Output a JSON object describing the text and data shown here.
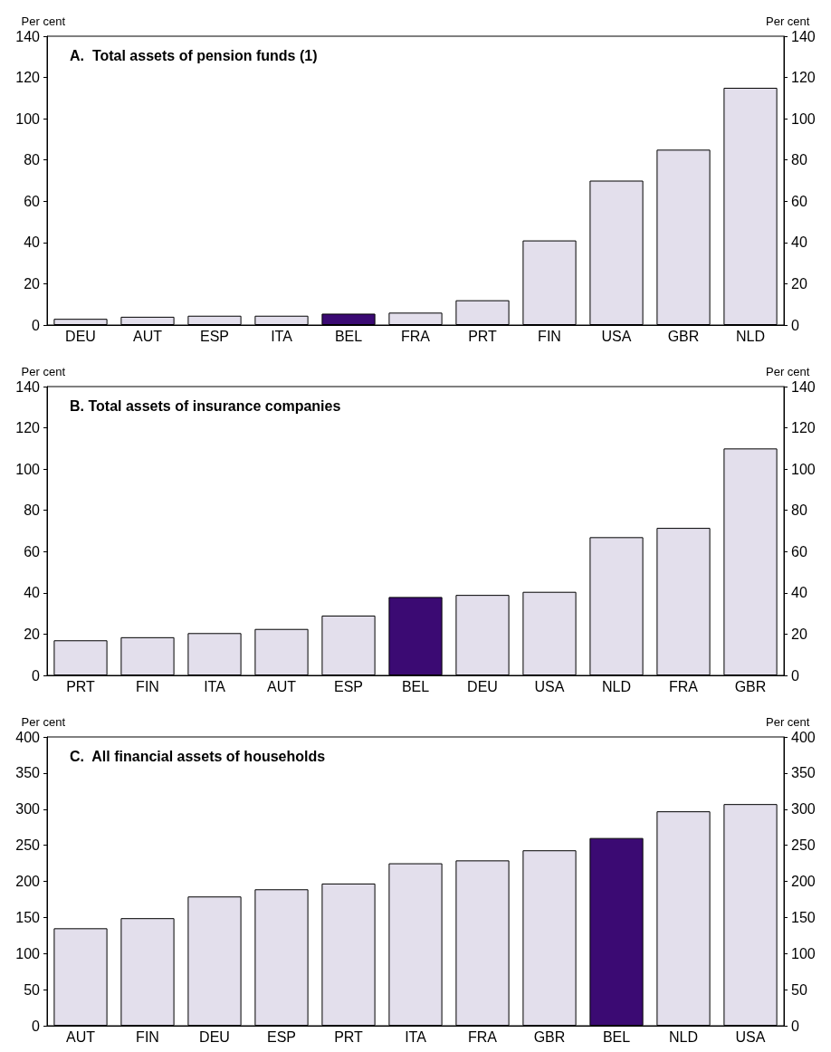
{
  "chart_data": [
    {
      "type": "bar",
      "title": "A.  Total assets of pension funds (1)",
      "ylabel": "Per cent",
      "y2label": "Per cent",
      "categories": [
        "DEU",
        "AUT",
        "ESP",
        "ITA",
        "BEL",
        "FRA",
        "PRT",
        "FIN",
        "USA",
        "GBR",
        "NLD"
      ],
      "series": [
        {
          "colors": [
            "#e3dfec",
            "#e3dfec",
            "#e3dfec",
            "#e3dfec",
            "#3b0a73",
            "#e3dfec",
            "#e3dfec",
            "#e3dfec",
            "#e3dfec",
            "#e3dfec",
            "#e3dfec"
          ],
          "values": [
            3,
            4,
            4.5,
            4.5,
            5.5,
            6,
            12,
            41,
            70,
            85,
            115
          ]
        }
      ],
      "ylim": [
        0,
        140
      ],
      "yticks": [
        0,
        20,
        40,
        60,
        80,
        100,
        120,
        140
      ],
      "y2lim": [
        0,
        140
      ],
      "y2ticks": [
        0,
        20,
        40,
        60,
        80,
        100,
        120,
        140
      ],
      "grid": false
    },
    {
      "type": "bar",
      "title": "B. Total assets of insurance companies",
      "ylabel": "Per cent",
      "y2label": "Per cent",
      "categories": [
        "PRT",
        "FIN",
        "ITA",
        "AUT",
        "ESP",
        "BEL",
        "DEU",
        "USA",
        "NLD",
        "FRA",
        "GBR"
      ],
      "series": [
        {
          "colors": [
            "#e3dfec",
            "#e3dfec",
            "#e3dfec",
            "#e3dfec",
            "#e3dfec",
            "#3b0a73",
            "#e3dfec",
            "#e3dfec",
            "#e3dfec",
            "#e3dfec",
            "#e3dfec"
          ],
          "values": [
            17,
            18.5,
            20.5,
            22.5,
            29,
            38,
            39,
            40.5,
            67,
            71.5,
            110
          ]
        }
      ],
      "ylim": [
        0,
        140
      ],
      "yticks": [
        0,
        20,
        40,
        60,
        80,
        100,
        120,
        140
      ],
      "y2lim": [
        0,
        140
      ],
      "y2ticks": [
        0,
        20,
        40,
        60,
        80,
        100,
        120,
        140
      ],
      "grid": false
    },
    {
      "type": "bar",
      "title": "C.  All financial assets of households",
      "ylabel": "Per cent",
      "y2label": "Per cent",
      "categories": [
        "AUT",
        "FIN",
        "DEU",
        "ESP",
        "PRT",
        "ITA",
        "FRA",
        "GBR",
        "BEL",
        "NLD",
        "USA"
      ],
      "series": [
        {
          "colors": [
            "#e3dfec",
            "#e3dfec",
            "#e3dfec",
            "#e3dfec",
            "#e3dfec",
            "#e3dfec",
            "#e3dfec",
            "#e3dfec",
            "#3b0a73",
            "#e3dfec",
            "#e3dfec"
          ],
          "values": [
            135,
            149,
            179,
            189,
            197,
            225,
            229,
            243,
            260,
            297,
            307
          ]
        }
      ],
      "ylim": [
        0,
        400
      ],
      "yticks": [
        0,
        50,
        100,
        150,
        200,
        250,
        300,
        350,
        400
      ],
      "y2lim": [
        0,
        400
      ],
      "y2ticks": [
        0,
        50,
        100,
        150,
        200,
        250,
        300,
        350,
        400
      ],
      "grid": false
    }
  ]
}
